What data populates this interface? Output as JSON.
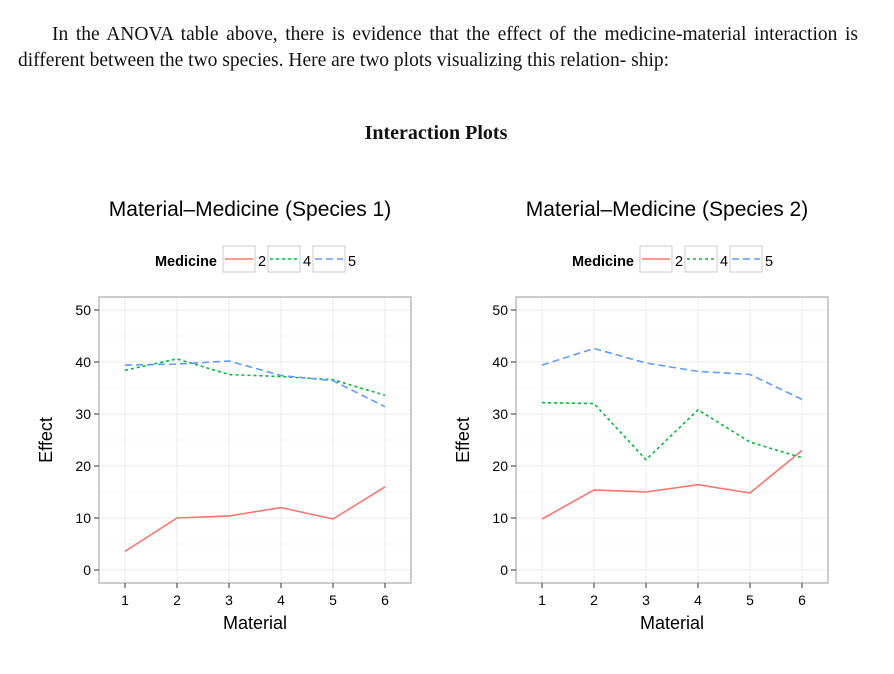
{
  "document": {
    "paragraph": "In the ANOVA table above, there is evidence that the effect of the medicine-material interaction is different between the two species. Here are two plots visualizing this relation- ship:",
    "section_title": "Interaction Plots"
  },
  "colors": {
    "med2": "#F8766D",
    "med4": "#00BA38",
    "med5": "#619CFF",
    "grid": "#ebebeb",
    "panel_border": "#999999"
  },
  "chart_data": [
    {
      "type": "line",
      "title": "Material–Medicine (Species 1)",
      "xlabel": "Material",
      "ylabel": "Effect",
      "legend_title": "Medicine",
      "legend_position": "top",
      "x": [
        1,
        2,
        3,
        4,
        5,
        6
      ],
      "xlim": [
        0.5,
        6.5
      ],
      "ylim": [
        -2.5,
        52.5
      ],
      "yticks": [
        0,
        10,
        20,
        30,
        40,
        50
      ],
      "grid": true,
      "series": [
        {
          "name": "2",
          "color": "#F8766D",
          "dash": "solid",
          "values": [
            3.6,
            10.0,
            10.4,
            12.0,
            9.8,
            16.0
          ]
        },
        {
          "name": "4",
          "color": "#00BA38",
          "dash": "dotted",
          "values": [
            38.4,
            40.6,
            37.6,
            37.2,
            36.6,
            33.6
          ]
        },
        {
          "name": "5",
          "color": "#619CFF",
          "dash": "dashed",
          "values": [
            39.4,
            39.6,
            40.2,
            37.4,
            36.4,
            31.4
          ]
        }
      ]
    },
    {
      "type": "line",
      "title": "Material–Medicine (Species 2)",
      "xlabel": "Material",
      "ylabel": "Effect",
      "legend_title": "Medicine",
      "legend_position": "top",
      "x": [
        1,
        2,
        3,
        4,
        5,
        6
      ],
      "xlim": [
        0.5,
        6.5
      ],
      "ylim": [
        -2.5,
        52.5
      ],
      "yticks": [
        0,
        10,
        20,
        30,
        40,
        50
      ],
      "grid": true,
      "series": [
        {
          "name": "2",
          "color": "#F8766D",
          "dash": "solid",
          "values": [
            9.8,
            15.4,
            15.0,
            16.4,
            14.8,
            23.0
          ]
        },
        {
          "name": "4",
          "color": "#00BA38",
          "dash": "dotted",
          "values": [
            32.2,
            32.0,
            21.2,
            30.8,
            24.6,
            21.6
          ]
        },
        {
          "name": "5",
          "color": "#619CFF",
          "dash": "dashed",
          "values": [
            39.4,
            42.6,
            39.8,
            38.2,
            37.6,
            32.8
          ]
        }
      ]
    }
  ]
}
